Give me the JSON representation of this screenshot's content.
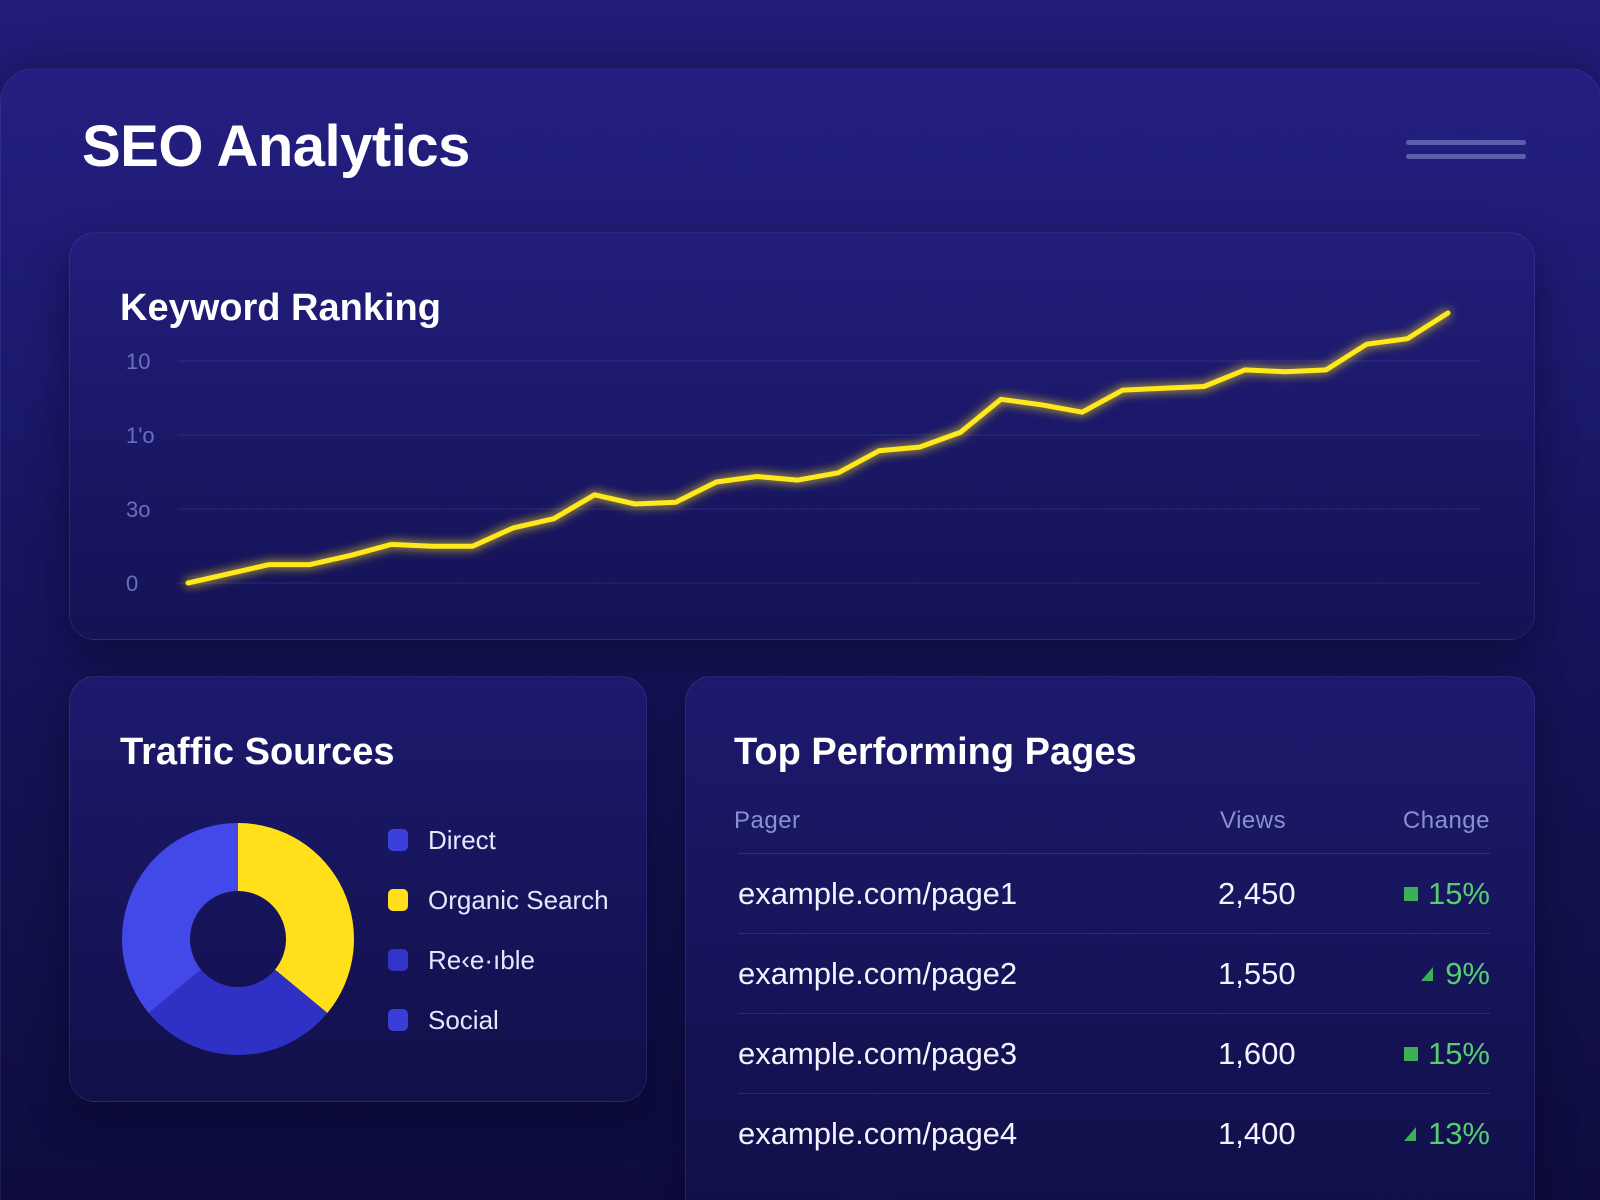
{
  "header": {
    "title": "SEO Analytics",
    "menu_icon": "hamburger-menu-icon"
  },
  "ranking": {
    "title": "Keyword Ranking",
    "chart_data": {
      "type": "line",
      "title": "Keyword Ranking",
      "xlabel": "",
      "ylabel": "",
      "y_tick_labels": [
        "10",
        "1'o",
        "3o",
        "0"
      ],
      "grid": true,
      "series": [
        {
          "color": "#ffe81a",
          "values": [
            0,
            0.5,
            1,
            1,
            1.5,
            2.1,
            2,
            2,
            3,
            3.5,
            4.8,
            4.3,
            4.4,
            5.5,
            5.8,
            5.6,
            6,
            7.2,
            7.4,
            8.2,
            10,
            9.7,
            9.3,
            10.5,
            10.6,
            10.7,
            11.6,
            11.5,
            11.6,
            13,
            13.3,
            14.7
          ]
        }
      ],
      "ylim": [
        0,
        14.7
      ]
    }
  },
  "traffic": {
    "title": "Traffic Sources",
    "chart_data": {
      "type": "pie",
      "labels": [
        "Organic Search",
        "Referrable",
        "Direct"
      ],
      "values": [
        36,
        28,
        36
      ],
      "colors": [
        "#ffe01a",
        "#2f31c4",
        "#4349e8"
      ]
    },
    "legend": [
      {
        "label": "Direct",
        "color": "#3b3fdc"
      },
      {
        "label": "Organic Search",
        "color": "#ffe01a"
      },
      {
        "label": "Re‹e·ıble",
        "color": "#3034c8"
      },
      {
        "label": "Social",
        "color": "#3a3ed6"
      }
    ]
  },
  "pages": {
    "title": "Top Performing Pages",
    "columns": {
      "page": "Pager",
      "views": "Views",
      "change": "Change"
    },
    "rows": [
      {
        "page": "example.com/page1",
        "views": "2,450",
        "change": "15%",
        "indicator": "square"
      },
      {
        "page": "example.com/page2",
        "views": "1,550",
        "change": "9%",
        "indicator": "triangle"
      },
      {
        "page": "example.com/page3",
        "views": "1,600",
        "change": "15%",
        "indicator": "square"
      },
      {
        "page": "example.com/page4",
        "views": "1,400",
        "change": "13%",
        "indicator": "triangle"
      }
    ],
    "positive_color": "#52d06d"
  }
}
